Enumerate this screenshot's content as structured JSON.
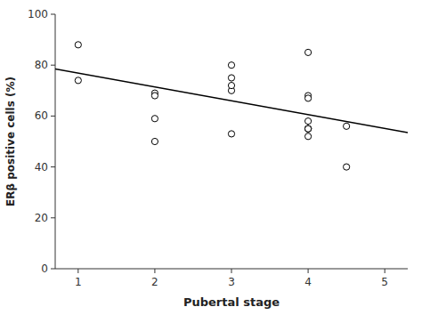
{
  "chart_data": {
    "type": "scatter",
    "xlabel": "Pubertal stage",
    "ylabel": "ERβ positive cells (%)",
    "xlim": [
      0.7,
      5.3
    ],
    "ylim": [
      0,
      100
    ],
    "xticks": [
      1,
      2,
      3,
      4,
      5
    ],
    "yticks": [
      0,
      20,
      40,
      60,
      80,
      100
    ],
    "grid": false,
    "series": [
      {
        "type": "scatter",
        "marker": "open-circle",
        "color": "black",
        "x": [
          1,
          1,
          2,
          2,
          2,
          2,
          3,
          3,
          3,
          3,
          3,
          4,
          4,
          4,
          4,
          4,
          4,
          4,
          4,
          4,
          4.5,
          4.5
        ],
        "values": [
          88,
          74,
          69,
          68,
          59,
          50,
          75,
          80,
          70,
          53,
          72,
          85,
          68,
          67,
          55,
          55,
          55,
          58,
          52,
          55,
          56,
          40
        ]
      },
      {
        "type": "line",
        "line_style": "solid",
        "color": "black",
        "x": [
          0.7,
          5.3
        ],
        "values": [
          78.5,
          53.5
        ]
      }
    ]
  }
}
